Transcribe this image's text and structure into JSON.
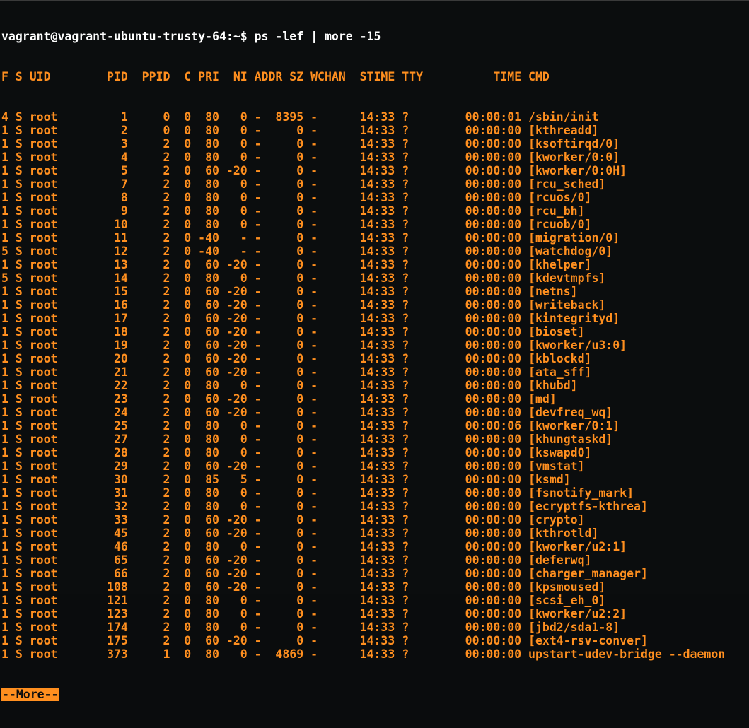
{
  "terminal": {
    "prompt": "vagrant@vagrant-ubuntu-trusty-64:~$ ps -lef | more -15",
    "header": "F S UID        PID  PPID  C PRI  NI ADDR SZ WCHAN  STIME TTY          TIME CMD",
    "rows": [
      "4 S root         1     0  0  80   0 -  8395 -      14:33 ?        00:00:01 /sbin/init",
      "1 S root         2     0  0  80   0 -     0 -      14:33 ?        00:00:00 [kthreadd]",
      "1 S root         3     2  0  80   0 -     0 -      14:33 ?        00:00:00 [ksoftirqd/0]",
      "1 S root         4     2  0  80   0 -     0 -      14:33 ?        00:00:00 [kworker/0:0]",
      "1 S root         5     2  0  60 -20 -     0 -      14:33 ?        00:00:00 [kworker/0:0H]",
      "1 S root         7     2  0  80   0 -     0 -      14:33 ?        00:00:00 [rcu_sched]",
      "1 S root         8     2  0  80   0 -     0 -      14:33 ?        00:00:00 [rcuos/0]",
      "1 S root         9     2  0  80   0 -     0 -      14:33 ?        00:00:00 [rcu_bh]",
      "1 S root        10     2  0  80   0 -     0 -      14:33 ?        00:00:00 [rcuob/0]",
      "1 S root        11     2  0 -40   - -     0 -      14:33 ?        00:00:00 [migration/0]",
      "5 S root        12     2  0 -40   - -     0 -      14:33 ?        00:00:00 [watchdog/0]",
      "1 S root        13     2  0  60 -20 -     0 -      14:33 ?        00:00:00 [khelper]",
      "5 S root        14     2  0  80   0 -     0 -      14:33 ?        00:00:00 [kdevtmpfs]",
      "1 S root        15     2  0  60 -20 -     0 -      14:33 ?        00:00:00 [netns]",
      "1 S root        16     2  0  60 -20 -     0 -      14:33 ?        00:00:00 [writeback]",
      "1 S root        17     2  0  60 -20 -     0 -      14:33 ?        00:00:00 [kintegrityd]",
      "1 S root        18     2  0  60 -20 -     0 -      14:33 ?        00:00:00 [bioset]",
      "1 S root        19     2  0  60 -20 -     0 -      14:33 ?        00:00:00 [kworker/u3:0]",
      "1 S root        20     2  0  60 -20 -     0 -      14:33 ?        00:00:00 [kblockd]",
      "1 S root        21     2  0  60 -20 -     0 -      14:33 ?        00:00:00 [ata_sff]",
      "1 S root        22     2  0  80   0 -     0 -      14:33 ?        00:00:00 [khubd]",
      "1 S root        23     2  0  60 -20 -     0 -      14:33 ?        00:00:00 [md]",
      "1 S root        24     2  0  60 -20 -     0 -      14:33 ?        00:00:00 [devfreq_wq]",
      "1 S root        25     2  0  80   0 -     0 -      14:33 ?        00:00:06 [kworker/0:1]",
      "1 S root        27     2  0  80   0 -     0 -      14:33 ?        00:00:00 [khungtaskd]",
      "1 S root        28     2  0  80   0 -     0 -      14:33 ?        00:00:00 [kswapd0]",
      "1 S root        29     2  0  60 -20 -     0 -      14:33 ?        00:00:00 [vmstat]",
      "1 S root        30     2  0  85   5 -     0 -      14:33 ?        00:00:00 [ksmd]",
      "1 S root        31     2  0  80   0 -     0 -      14:33 ?        00:00:00 [fsnotify_mark]",
      "1 S root        32     2  0  80   0 -     0 -      14:33 ?        00:00:00 [ecryptfs-kthrea]",
      "1 S root        33     2  0  60 -20 -     0 -      14:33 ?        00:00:00 [crypto]",
      "1 S root        45     2  0  60 -20 -     0 -      14:33 ?        00:00:00 [kthrotld]",
      "1 S root        46     2  0  80   0 -     0 -      14:33 ?        00:00:00 [kworker/u2:1]",
      "1 S root        65     2  0  60 -20 -     0 -      14:33 ?        00:00:00 [deferwq]",
      "1 S root        66     2  0  60 -20 -     0 -      14:33 ?        00:00:00 [charger_manager]",
      "1 S root       108     2  0  60 -20 -     0 -      14:33 ?        00:00:00 [kpsmoused]",
      "1 S root       121     2  0  80   0 -     0 -      14:33 ?        00:00:00 [scsi_eh_0]",
      "1 S root       123     2  0  80   0 -     0 -      14:33 ?        00:00:00 [kworker/u2:2]",
      "1 S root       174     2  0  80   0 -     0 -      14:33 ?        00:00:00 [jbd2/sda1-8]",
      "1 S root       175     2  0  60 -20 -     0 -      14:33 ?        00:00:00 [ext4-rsv-conver]",
      "1 S root       373     1  0  80   0 -  4869 -      14:33 ?        00:00:00 upstart-udev-bridge --daemon"
    ],
    "more_prompt": "--More--"
  },
  "colors": {
    "background": "#0b0d0e",
    "text": "#ff8f1f",
    "prompt_text": "#ffffff"
  }
}
